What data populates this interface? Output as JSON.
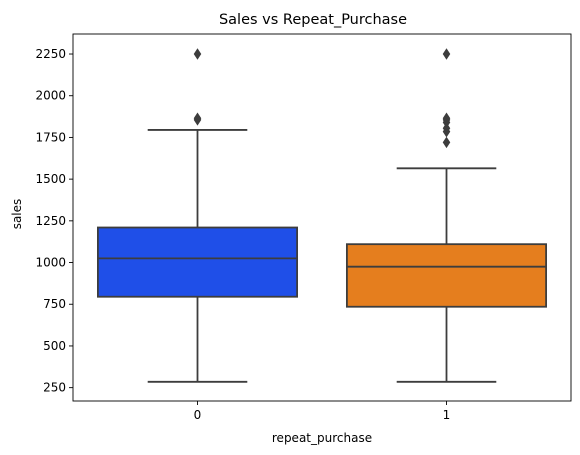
{
  "chart_data": {
    "type": "box",
    "title": "Sales vs Repeat_Purchase",
    "xlabel": "repeat_purchase",
    "ylabel": "sales",
    "categories": [
      "0",
      "1"
    ],
    "y_ticks": [
      250,
      500,
      750,
      1000,
      1250,
      1500,
      1750,
      2000,
      2250
    ],
    "ylim": [
      170,
      2370
    ],
    "grid": false,
    "boxes": [
      {
        "category": "0",
        "color": "#1f4fe8",
        "whisker_low": 285,
        "q1": 795,
        "median": 1025,
        "q3": 1210,
        "whisker_high": 1795,
        "outliers": [
          1855,
          1865,
          2250
        ]
      },
      {
        "category": "1",
        "color": "#e57e1e",
        "whisker_low": 285,
        "q1": 735,
        "median": 975,
        "q3": 1110,
        "whisker_high": 1565,
        "outliers": [
          1720,
          1785,
          1805,
          1840,
          1855,
          1865,
          2250
        ]
      }
    ],
    "line_color": "#3d3d3d"
  }
}
